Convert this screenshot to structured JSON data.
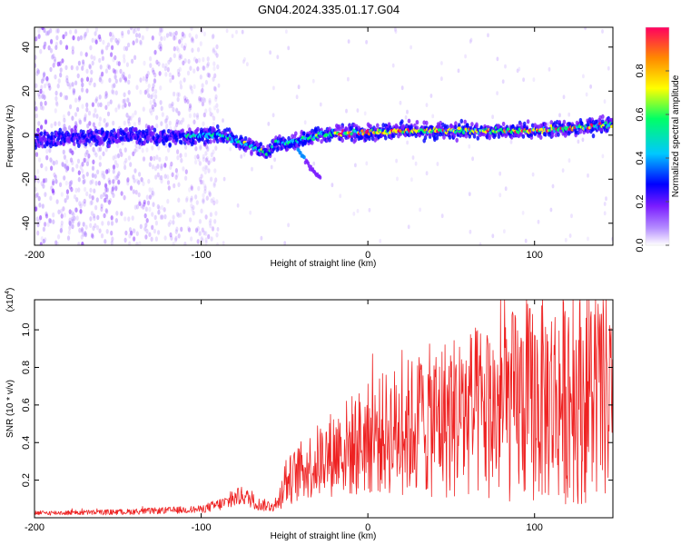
{
  "title": "GN04.2024.335.01.17.G04",
  "chart_data": [
    {
      "type": "heatmap",
      "xlabel": "Height of straight line (km)",
      "ylabel": "Frequency (Hz)",
      "xlim": [
        -200,
        147
      ],
      "ylim": [
        -50,
        49
      ],
      "xticks": [
        -200,
        -100,
        0,
        100
      ],
      "yticks": [
        -40,
        -20,
        0,
        20,
        40
      ],
      "colorbar": {
        "label": "Normalized spectral amplitude",
        "range": [
          0,
          1
        ],
        "ticks": [
          0.0,
          0.2,
          0.4,
          0.6,
          0.8
        ],
        "colors": [
          "#ffffff",
          "#b48cff",
          "#7a1cff",
          "#0000ff",
          "#00c8ff",
          "#00ff66",
          "#ffff00",
          "#ff8800",
          "#ff0060"
        ]
      },
      "ridge": {
        "x": [
          -200,
          -180,
          -160,
          -140,
          -120,
          -100,
          -90,
          -80,
          -70,
          -60,
          -55,
          -50,
          -40,
          -30,
          -20,
          0,
          20,
          40,
          60,
          80,
          100,
          120,
          147
        ],
        "y": [
          -2,
          -1,
          -1,
          0,
          -1,
          0,
          0,
          -2,
          -5,
          -8,
          -3,
          -4,
          -2,
          0,
          1,
          1,
          2,
          2,
          2,
          2,
          2,
          3,
          5
        ]
      },
      "tail": {
        "x": [
          -42,
          -35,
          -28
        ],
        "y": [
          -6,
          -14,
          -20
        ]
      }
    },
    {
      "type": "line",
      "xlabel": "Height of straight line (km)",
      "ylabel": "SNR (10 * v/v)",
      "scale_label": "(x10",
      "scale_exp": "4",
      "xlim": [
        -200,
        147
      ],
      "ylim": [
        0,
        11600
      ],
      "xticks": [
        -200,
        -100,
        0,
        100
      ],
      "yticks": [
        2000,
        4000,
        6000,
        8000,
        10000
      ],
      "ytick_labels": [
        "0.2",
        "0.4",
        "0.6",
        "0.8",
        "1.0"
      ],
      "series": [
        {
          "color": "#ee2222",
          "envelope": {
            "x": [
              -200,
              -150,
              -100,
              -85,
              -75,
              -65,
              -55,
              -50,
              -40,
              -30,
              -20,
              -10,
              0,
              10,
              20,
              30,
              40,
              50,
              60,
              70,
              80,
              90,
              100,
              110,
              120,
              130,
              147
            ],
            "mean": [
              250,
              300,
              450,
              800,
              1200,
              700,
              600,
              1800,
              2500,
              3000,
              3500,
              3800,
              4200,
              4500,
              4700,
              5000,
              5200,
              5400,
              5500,
              5600,
              5700,
              6000,
              6200,
              6300,
              6400,
              6500,
              6300
            ],
            "amp": [
              120,
              150,
              200,
              400,
              500,
              350,
              300,
              1200,
              1600,
              2000,
              2400,
              2800,
              3000,
              3300,
              3600,
              3900,
              4200,
              4500,
              4600,
              4800,
              5000,
              5300,
              5500,
              5600,
              5700,
              5800,
              5600
            ]
          }
        }
      ]
    }
  ]
}
